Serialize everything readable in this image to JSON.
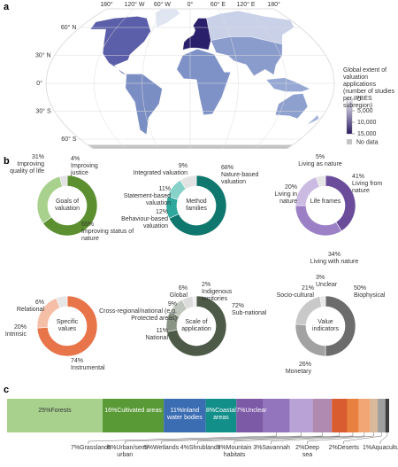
{
  "panel_labels": [
    "a",
    "b",
    "c"
  ],
  "chart_data": [
    {
      "type": "map",
      "xlim": [
        -180,
        180
      ],
      "ylim": [
        -70,
        80
      ],
      "xticks": [
        {
          "value": -180,
          "label": "180°"
        },
        {
          "value": -120,
          "label": "120° W"
        },
        {
          "value": -60,
          "label": "60° W"
        },
        {
          "value": 0,
          "label": "0°"
        },
        {
          "value": 60,
          "label": "60° E"
        },
        {
          "value": 120,
          "label": "120° E"
        },
        {
          "value": 180,
          "label": "180°"
        }
      ],
      "yticks": [
        {
          "value": 60,
          "label": "60° N"
        },
        {
          "value": 30,
          "label": "30° N"
        },
        {
          "value": 0,
          "label": "0°"
        },
        {
          "value": -30,
          "label": "30° S"
        },
        {
          "value": -60,
          "label": "60° S"
        }
      ],
      "colorbar": {
        "title": "Global extent of valuation applications (number of studies per IPBES subregion)",
        "lim": [
          0,
          15000
        ],
        "colors": [
          "#f2f4fa",
          "#2b1a63"
        ],
        "ticks": [
          0,
          {
            "value": 5000,
            "label": "5,000"
          },
          {
            "value": 10000,
            "label": "10,000"
          },
          {
            "value": 15000,
            "label": "15,000"
          }
        ],
        "no_data_label": "No data",
        "no_data_color": "#c4c4c4"
      }
    },
    {
      "type": "donut",
      "title": "Goals of valuation",
      "categories": [
        "Improving status of nature",
        "Improving quality of life",
        "Improving justice"
      ],
      "values": [
        65,
        31,
        4
      ],
      "value_labels": [
        "65%",
        "31%",
        "4%"
      ],
      "colors": [
        "#5b8f2f",
        "#a9d18e",
        "#e3e3e3"
      ]
    },
    {
      "type": "donut",
      "title": "Method families",
      "categories": [
        "Nature-based valuation",
        "Behaviour-based valuation",
        "Statement-based valuation",
        "Integrated valuation"
      ],
      "values": [
        68,
        12,
        11,
        9
      ],
      "value_labels": [
        "68%",
        "12%",
        "11%",
        "9%"
      ],
      "colors": [
        "#0f776d",
        "#2ea89c",
        "#86d2c9",
        "#e3e3e3"
      ]
    },
    {
      "type": "donut",
      "title": "Life frames",
      "categories": [
        "Living from nature",
        "Living with nature",
        "Living in nature",
        "Living as nature"
      ],
      "values": [
        41,
        34,
        20,
        5
      ],
      "value_labels": [
        "41%",
        "34%",
        "20%",
        "5%"
      ],
      "colors": [
        "#6a4c9b",
        "#9c80c6",
        "#cbbbe2",
        "#e6e6e6"
      ]
    },
    {
      "type": "donut",
      "title": "Specific values",
      "categories": [
        "Instrumental",
        "Intrinsic",
        "Relational"
      ],
      "values": [
        74,
        20,
        6
      ],
      "value_labels": [
        "74%",
        "20%",
        "6%"
      ],
      "colors": [
        "#e8744a",
        "#f5bfa7",
        "#e6e6e6"
      ]
    },
    {
      "type": "donut",
      "title": "Scale of application",
      "categories": [
        "Sub-national",
        "National",
        "Cross-regional/national (e.g. Protected areas)",
        "Global",
        "Indigenous territories"
      ],
      "values": [
        72,
        11,
        9,
        6,
        2
      ],
      "value_labels": [
        "72%",
        "11%",
        "9%",
        "6%",
        "2%"
      ],
      "colors": [
        "#4e5a48",
        "#8b9585",
        "#bfc6bb",
        "#dcdcdc",
        "#efefef"
      ]
    },
    {
      "type": "donut",
      "title": "Value indicators",
      "categories": [
        "Biophysical",
        "Monetary",
        "Socio-cultural",
        "Unclear"
      ],
      "values": [
        50,
        26,
        21,
        3
      ],
      "value_labels": [
        "50%",
        "26%",
        "21%",
        "3%"
      ],
      "colors": [
        "#6c6c6c",
        "#a2a2a2",
        "#c9c9c9",
        "#e8e8e8"
      ]
    },
    {
      "type": "stacked_bar",
      "categories": [
        "Forests",
        "Cultivated areas",
        "Inland water bodies",
        "Coastal areas",
        "Unclear",
        "Grasslands",
        "Urban/semi-urban",
        "Wetlands",
        "Shrublands",
        "Mountain habitats",
        "Savannah",
        "Deep sea",
        "Deserts",
        "Aquaculture"
      ],
      "values": [
        25,
        16,
        11,
        8,
        7,
        7,
        6,
        5,
        4,
        3,
        3,
        2,
        2,
        1
      ],
      "value_labels": [
        "25%",
        "16%",
        "11%",
        "8%",
        "7%",
        "7%",
        "6%",
        "5%",
        "4%",
        "3%",
        "3%",
        "2%",
        "2%",
        "1%"
      ],
      "colors": [
        "#a9d18e",
        "#5a9a36",
        "#3b6db3",
        "#138f8a",
        "#7d5aa6",
        "#9375bd",
        "#b9a2d6",
        "#b08ab0",
        "#d85c30",
        "#e8803f",
        "#f2a676",
        "#d8b89a",
        "#a0a0a0",
        "#3e3e3e"
      ]
    }
  ]
}
